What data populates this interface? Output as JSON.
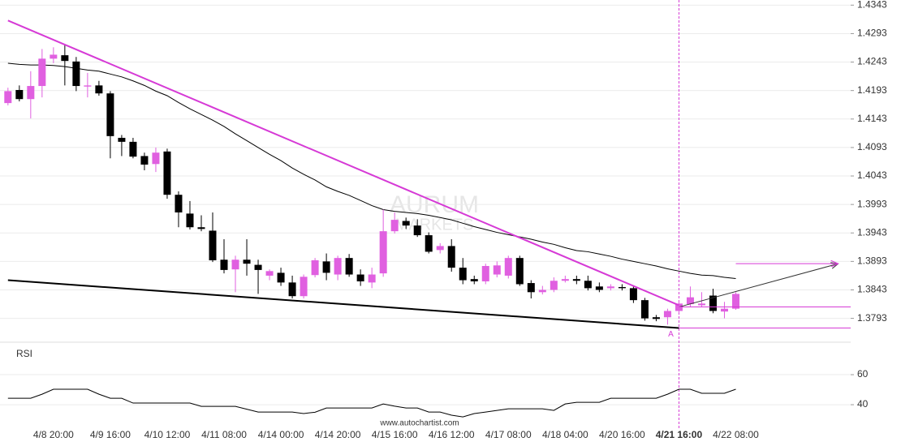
{
  "chart_data": [
    {
      "type": "candlestick",
      "categories": [
        null,
        null,
        null,
        null,
        "4/8 20:00",
        null,
        null,
        null,
        null,
        "4/9 16:00",
        null,
        null,
        null,
        null,
        "4/10 12:00",
        null,
        null,
        null,
        null,
        "4/11 08:00",
        null,
        null,
        null,
        null,
        "4/14 00:00",
        null,
        null,
        null,
        null,
        "4/14 20:00",
        null,
        null,
        null,
        null,
        "4/15 16:00",
        null,
        null,
        null,
        null,
        "4/16 12:00",
        null,
        null,
        null,
        null,
        "4/17 08:00",
        null,
        null,
        null,
        null,
        "4/18 04:00",
        null,
        null,
        null,
        null,
        "4/20 16:00",
        null,
        null,
        null,
        null,
        "4/21 16:00",
        null,
        null,
        null,
        null,
        "4/22 08:00"
      ],
      "open": [
        1.4171,
        1.4194,
        1.4178,
        1.4201,
        1.4249,
        1.4255,
        1.4244,
        1.42,
        1.4202,
        1.4188,
        1.411,
        1.4103,
        1.4078,
        1.4064,
        1.4086,
        1.401,
        1.3977,
        1.3953,
        1.3947,
        1.3896,
        1.3879,
        1.3896,
        1.3887,
        1.3868,
        1.3873,
        1.3856,
        1.3832,
        1.3869,
        1.3893,
        1.387,
        1.3899,
        1.387,
        1.3856,
        1.3872,
        1.3946,
        1.3964,
        1.3956,
        1.3939,
        1.3913,
        1.392,
        1.3882,
        1.3862,
        1.3858,
        1.387,
        1.3868,
        1.3899,
        1.3855,
        1.3839,
        1.3843,
        1.3859,
        1.3862,
        1.3859,
        1.3849,
        1.3846,
        1.3848,
        1.3846,
        1.3825,
        1.3795,
        1.3795,
        1.3806,
        1.3818,
        1.3816,
        1.3833,
        1.3805,
        1.381
      ],
      "high": [
        1.4198,
        1.4202,
        1.4227,
        1.4266,
        1.4269,
        1.4274,
        1.4252,
        1.4224,
        1.421,
        1.4192,
        1.4115,
        1.411,
        1.4084,
        1.4093,
        1.4091,
        1.4016,
        1.3999,
        1.3974,
        1.3979,
        1.3932,
        1.3903,
        1.3932,
        1.3896,
        1.3879,
        1.3882,
        1.3868,
        1.387,
        1.3899,
        1.3907,
        1.3903,
        1.3906,
        1.3879,
        1.3882,
        1.3984,
        1.3979,
        1.397,
        1.3967,
        1.3944,
        1.3925,
        1.3932,
        1.3899,
        1.3868,
        1.3889,
        1.3893,
        1.3903,
        1.3903,
        1.386,
        1.385,
        1.3865,
        1.3868,
        1.3868,
        1.3868,
        1.3856,
        1.3853,
        1.3853,
        1.385,
        1.3829,
        1.3799,
        1.381,
        1.3825,
        1.3849,
        1.3839,
        1.3845,
        1.3822,
        1.3839
      ],
      "low": [
        1.4167,
        1.4174,
        1.4144,
        1.4181,
        1.4241,
        1.4202,
        1.4192,
        1.4181,
        1.4184,
        1.4074,
        1.4078,
        1.4074,
        1.4053,
        1.405,
        1.4003,
        1.3953,
        1.3949,
        1.3946,
        1.3892,
        1.3872,
        1.3839,
        1.3868,
        1.3836,
        1.386,
        1.385,
        1.3828,
        1.3828,
        1.3865,
        1.386,
        1.386,
        1.3866,
        1.385,
        1.3846,
        1.3866,
        1.3942,
        1.395,
        1.3936,
        1.3907,
        1.3907,
        1.3875,
        1.3853,
        1.3853,
        1.3853,
        1.3865,
        1.3863,
        1.385,
        1.3828,
        1.3835,
        1.3839,
        1.3856,
        1.3853,
        1.3842,
        1.3839,
        1.3842,
        1.3842,
        1.382,
        1.3789,
        1.3788,
        1.3782,
        1.3802,
        1.3813,
        1.3813,
        1.3802,
        1.3793,
        1.3808
      ],
      "close": [
        1.4192,
        1.4178,
        1.4201,
        1.4249,
        1.4256,
        1.4245,
        1.4201,
        1.4202,
        1.4188,
        1.4113,
        1.4103,
        1.4077,
        1.4063,
        1.4084,
        1.401,
        1.3979,
        1.3953,
        1.395,
        1.3895,
        1.3878,
        1.3896,
        1.3889,
        1.3878,
        1.3876,
        1.3856,
        1.3832,
        1.3866,
        1.3895,
        1.3873,
        1.3899,
        1.387,
        1.3858,
        1.387,
        1.3946,
        1.3966,
        1.3956,
        1.3939,
        1.391,
        1.392,
        1.3882,
        1.386,
        1.3858,
        1.3885,
        1.3886,
        1.3899,
        1.3853,
        1.3839,
        1.3843,
        1.3859,
        1.3862,
        1.3859,
        1.3846,
        1.3843,
        1.3849,
        1.3846,
        1.3825,
        1.3793,
        1.3792,
        1.3806,
        1.3819,
        1.383,
        1.3819,
        1.3806,
        1.381,
        1.3836
      ],
      "up_color": "#e060e0",
      "down_color": "#000000",
      "moving_average": {
        "color": "#000000",
        "values": [
          1.4241,
          1.4239,
          1.4238,
          1.4238,
          1.4237,
          1.4235,
          1.4232,
          1.4229,
          1.4227,
          1.4222,
          1.4217,
          1.421,
          1.4202,
          1.4192,
          1.4184,
          1.4172,
          1.4161,
          1.4151,
          1.4141,
          1.413,
          1.4117,
          1.4105,
          1.4093,
          1.4081,
          1.407,
          1.4057,
          1.4046,
          1.4036,
          1.4024,
          1.4016,
          1.4009,
          1.4,
          1.3991,
          1.3984,
          1.3981,
          1.3979,
          1.3977,
          1.3974,
          1.397,
          1.3966,
          1.396,
          1.3954,
          1.3949,
          1.3944,
          1.394,
          1.3936,
          1.3932,
          1.3927,
          1.3923,
          1.3917,
          1.3912,
          1.391,
          1.3906,
          1.3902,
          1.3897,
          1.3893,
          1.3889,
          1.3885,
          1.388,
          1.3876,
          1.3872,
          1.3869,
          1.3868,
          1.3865,
          1.3863
        ]
      },
      "lines": [
        {
          "color": "#d63ad6",
          "width": 2,
          "x": [
            0,
            59
          ],
          "values": [
            1.4316,
            1.3816
          ]
        },
        {
          "color": "#000000",
          "width": 2,
          "x": [
            0,
            59
          ],
          "values": [
            1.386,
            1.3776
          ]
        },
        {
          "color": "#333333",
          "width": 1,
          "x": [
            59,
            73
          ],
          "values": [
            1.3813,
            1.3889
          ],
          "arrow": true
        },
        {
          "color": "#d63ad6",
          "width": 1,
          "x": [
            64,
            73
          ],
          "values": [
            1.3889,
            1.3889
          ],
          "arrow": true
        },
        {
          "color": "#d63ad6",
          "width": 1,
          "x": [
            59,
            74.1
          ],
          "values": [
            1.3813,
            1.3813
          ]
        },
        {
          "color": "#d63ad6",
          "width": 1,
          "x": [
            59,
            74.1
          ],
          "values": [
            1.3776,
            1.3776
          ]
        }
      ],
      "event_x": 59,
      "point_label": {
        "text": "A",
        "x": 59,
        "value": 1.3776
      },
      "watermark": [
        "AURUM",
        "MARKETS"
      ],
      "source": "www.autochartist.com",
      "xlim": [
        -0.7,
        74.1
      ],
      "ylim": [
        1.3754,
        1.4352
      ],
      "yticks": [
        1.4343,
        1.4293,
        1.4243,
        1.4193,
        1.4143,
        1.4093,
        1.4043,
        1.3993,
        1.3943,
        1.3893,
        1.3843,
        1.3793
      ],
      "grid": true
    },
    {
      "type": "line",
      "title": "RSI",
      "color": "#000000",
      "values": [
        44.3,
        44.3,
        44.3,
        47,
        50.3,
        50.3,
        50.3,
        50.3,
        47,
        44.3,
        44.3,
        41.1,
        41.1,
        41.1,
        41.1,
        41.1,
        41.1,
        38.9,
        38.9,
        38.9,
        38.9,
        37,
        35.1,
        35.1,
        35.1,
        35.1,
        34.1,
        35,
        37.8,
        37.8,
        37.8,
        37.8,
        37.8,
        40.5,
        39,
        37.8,
        37.8,
        35.1,
        35.1,
        33,
        31.9,
        34.1,
        35.1,
        36.2,
        37.3,
        37.3,
        37.3,
        37.3,
        36.2,
        40.5,
        41.6,
        41.6,
        41.6,
        44.3,
        44.3,
        44.3,
        44.3,
        44.3,
        47,
        50.3,
        50.3,
        47.6,
        47.6,
        47.6,
        50.3
      ],
      "ylim": [
        31.4,
        80
      ],
      "yticks": [
        60,
        40
      ],
      "grid": true
    }
  ]
}
